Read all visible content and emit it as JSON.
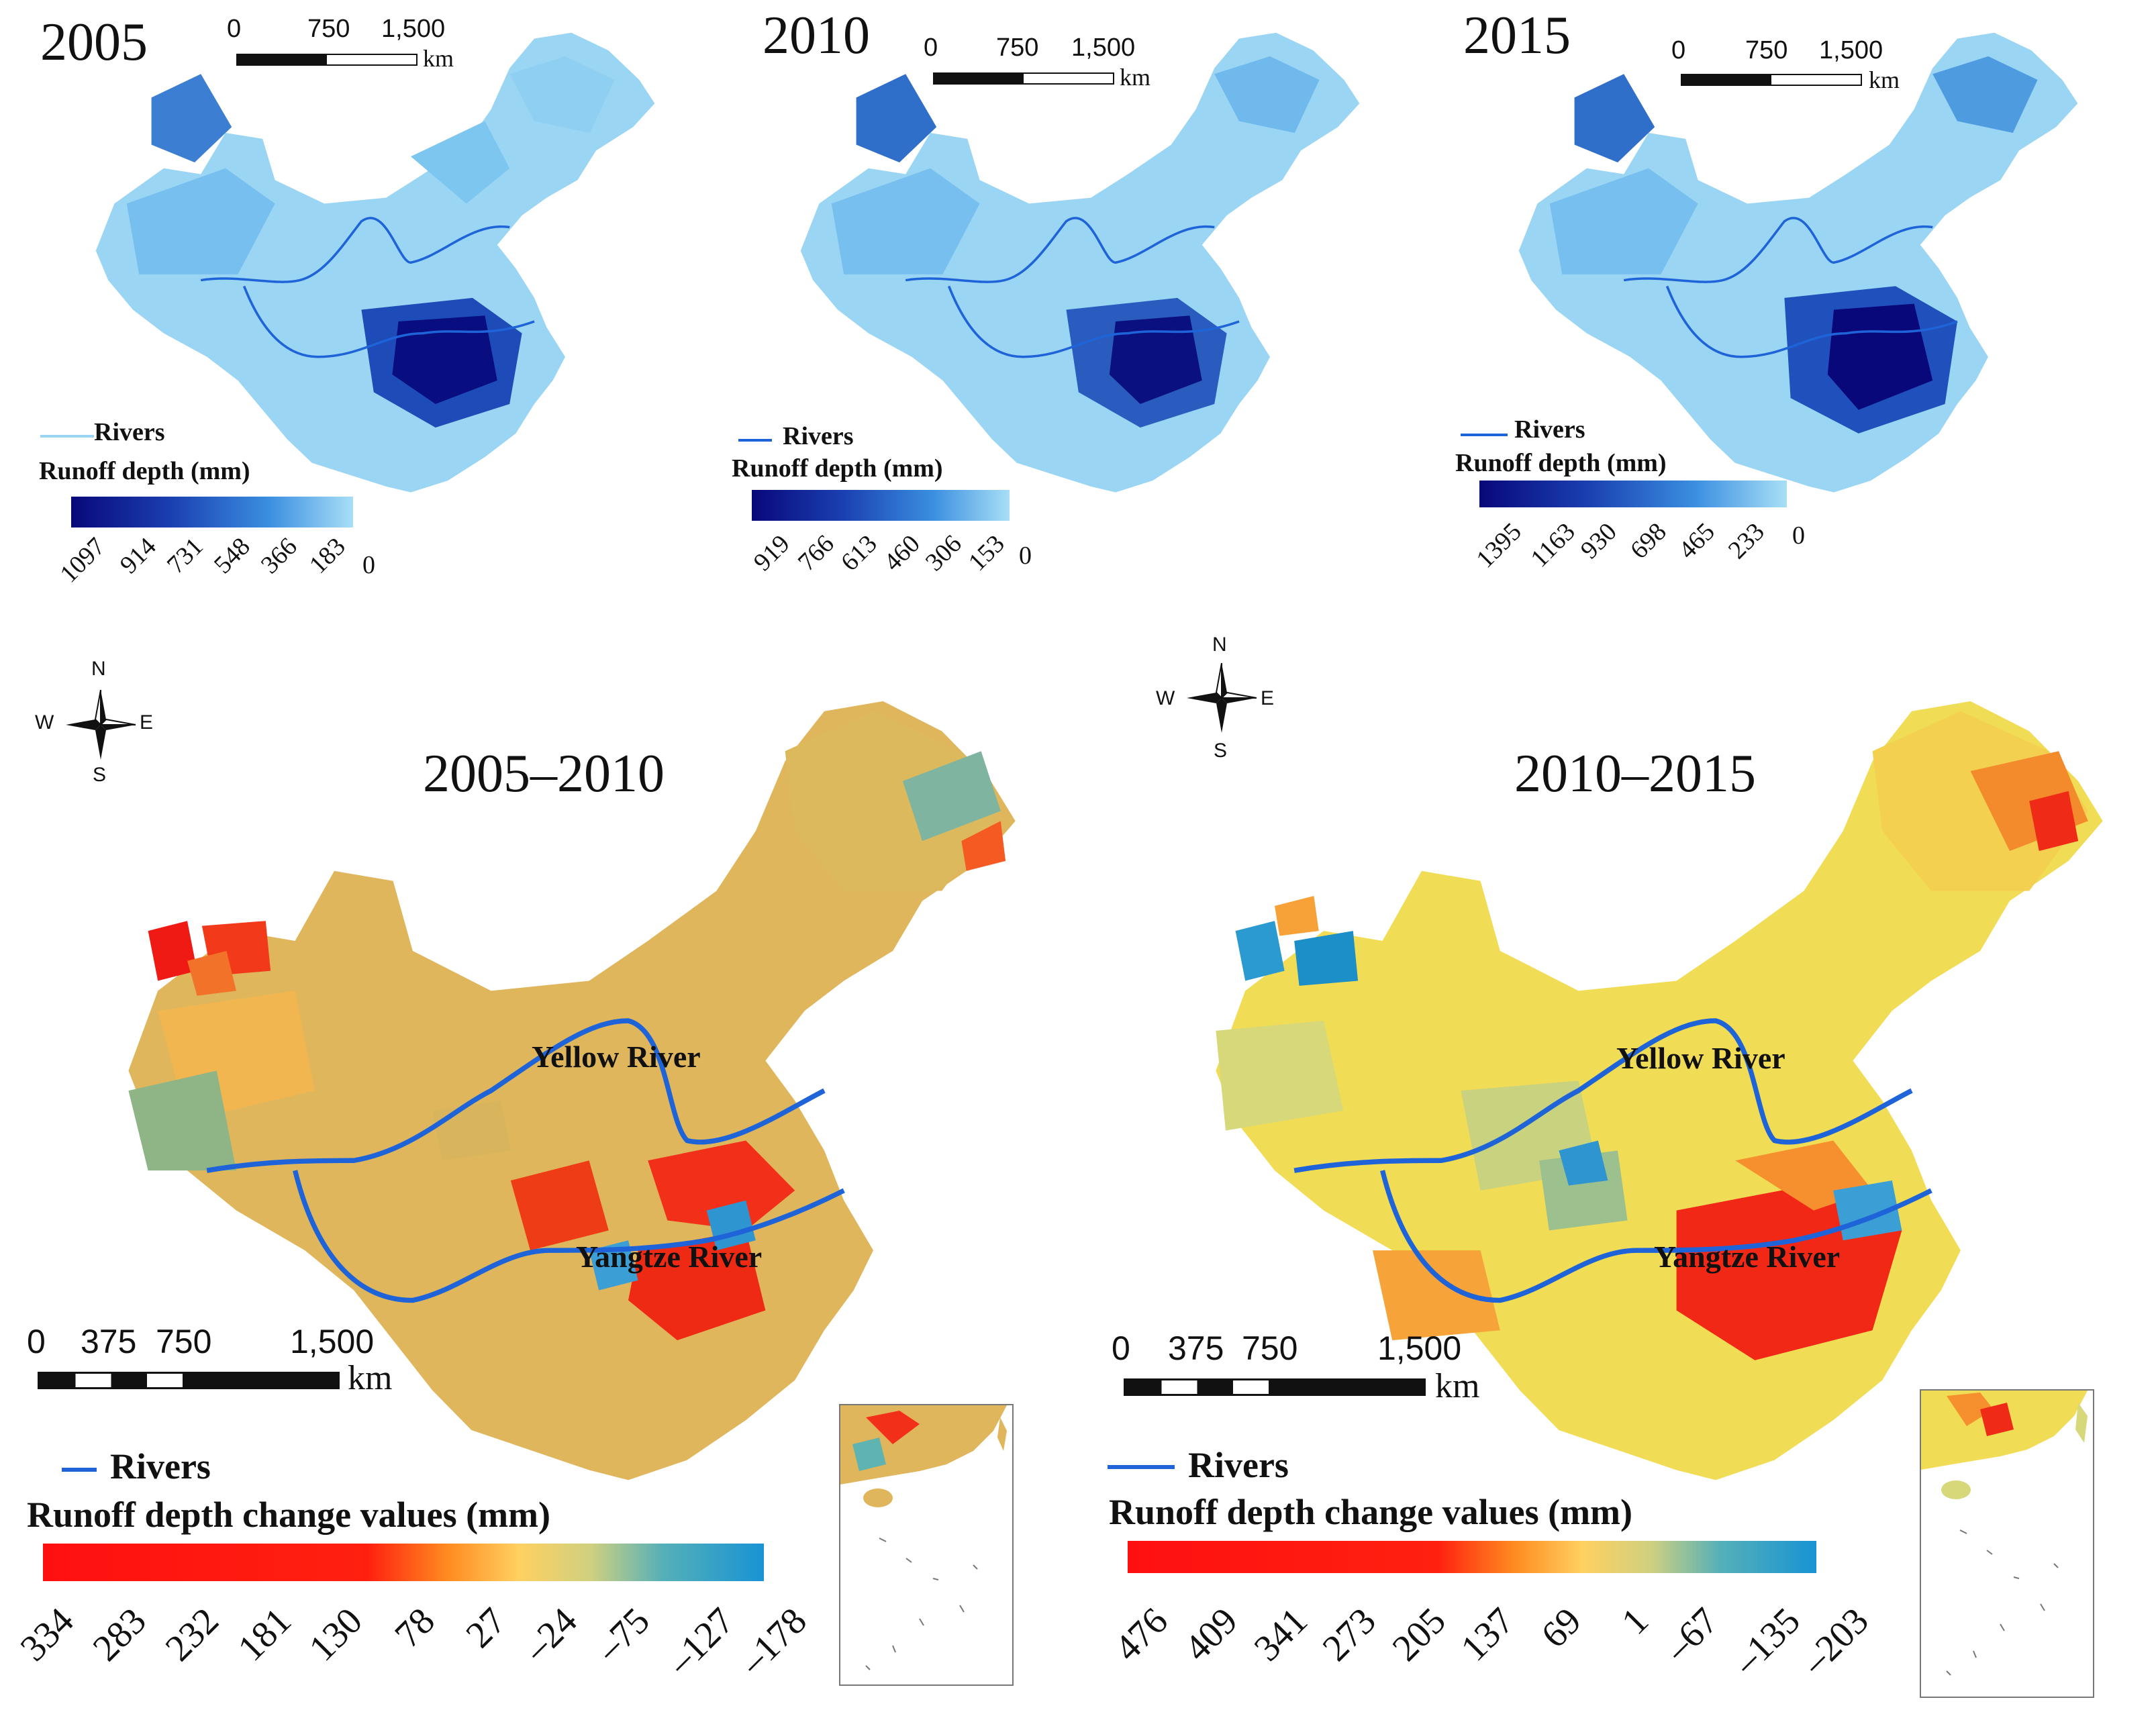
{
  "palette": {
    "runoff_gradient": [
      "#0a0a7a",
      "#1a3fb0",
      "#2f7fd8",
      "#6ab7ee",
      "#a8dff7"
    ],
    "change_gradient": [
      "#ff1a1a",
      "#ff2a10",
      "#ff7a20",
      "#ffd060",
      "#d9cf7a",
      "#5fb3b0",
      "#1a95d6"
    ],
    "river": "#1e64d8"
  },
  "panels": {
    "p2005": {
      "year": "2005",
      "scale": {
        "ticks": [
          "0",
          "750",
          "1,500"
        ],
        "unit": "km"
      },
      "legend": {
        "rivers": "Rivers",
        "title": "Runoff depth (mm)",
        "ticks": [
          "1097",
          "914",
          "731",
          "548",
          "366",
          "183"
        ],
        "zero": "0"
      }
    },
    "p2010": {
      "year": "2010",
      "scale": {
        "ticks": [
          "0",
          "750",
          "1,500"
        ],
        "unit": "km"
      },
      "legend": {
        "rivers": "Rivers",
        "title": "Runoff depth (mm)",
        "ticks": [
          "919",
          "766",
          "613",
          "460",
          "306",
          "153"
        ],
        "zero": "0"
      }
    },
    "p2015": {
      "year": "2015",
      "scale": {
        "ticks": [
          "0",
          "750",
          "1,500"
        ],
        "unit": "km"
      },
      "legend": {
        "rivers": "Rivers",
        "title": "Runoff depth (mm)",
        "ticks": [
          "1395",
          "1163",
          "930",
          "698",
          "465",
          "233"
        ],
        "zero": "0"
      }
    },
    "c0510": {
      "title": "2005–2010",
      "compass": {
        "n": "N",
        "s": "S",
        "e": "E",
        "w": "W"
      },
      "rivers": {
        "yellow": "Yellow River",
        "yangtze": "Yangtze River"
      },
      "scale": {
        "ticks": [
          "0",
          "375",
          "750",
          "1,500"
        ],
        "unit": "km"
      },
      "legend": {
        "rivers": "Rivers",
        "title": "Runoff depth change values (mm)",
        "ticks": [
          "334",
          "283",
          "232",
          "181",
          "130",
          "78",
          "27",
          "–24",
          "–75",
          "–127",
          "–178"
        ]
      }
    },
    "c1015": {
      "title": "2010–2015",
      "compass": {
        "n": "N",
        "s": "S",
        "e": "E",
        "w": "W"
      },
      "rivers": {
        "yellow": "Yellow River",
        "yangtze": "Yangtze River"
      },
      "scale": {
        "ticks": [
          "0",
          "375",
          "750",
          "1,500"
        ],
        "unit": "km"
      },
      "legend": {
        "rivers": "Rivers",
        "title": "Runoff depth change values (mm)",
        "ticks": [
          "476",
          "409",
          "341",
          "273",
          "205",
          "137",
          "69",
          "1",
          "–67",
          "–135",
          "–203"
        ]
      }
    }
  }
}
